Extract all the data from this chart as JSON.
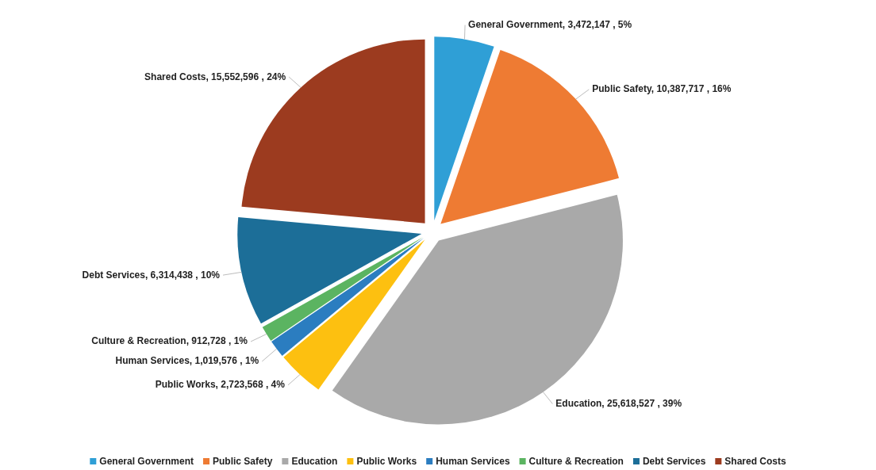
{
  "chart_data": {
    "type": "pie",
    "categories": [
      "General Government",
      "Public Safety",
      "Education",
      "Public Works",
      "Human Services",
      "Culture & Recreation",
      "Debt Services",
      "Shared Costs"
    ],
    "values": [
      3472147,
      10387717,
      25618527,
      2723568,
      1019576,
      912728,
      6314438,
      15552596
    ],
    "value_labels": [
      ", 3,472,147 , 5%",
      ", 10,387,717 , 16%",
      ", 25,618,527 , 39%",
      ", 2,723,568 , 4%",
      ", 1,019,576 , 1%",
      ", 912,728 , 1%",
      ", 6,314,438 , 10%",
      ", 15,552,596 , 24%"
    ],
    "colors": [
      "#2f9fd6",
      "#ee7b33",
      "#a9a9a9",
      "#fdc010",
      "#2b7dc0",
      "#5bb461",
      "#1c6e98",
      "#9c3b1f"
    ],
    "legend": "bottom"
  }
}
